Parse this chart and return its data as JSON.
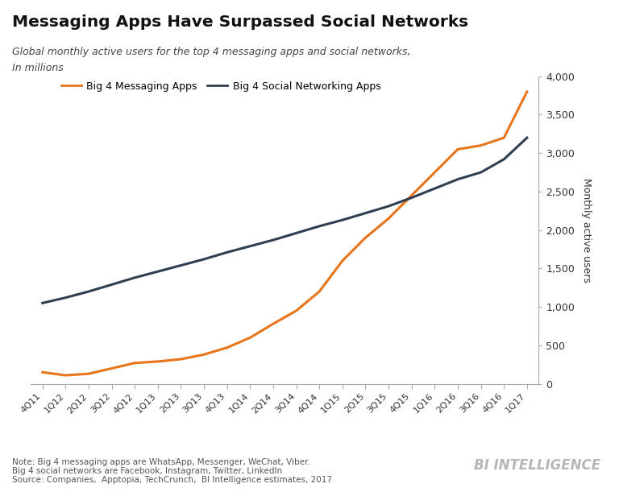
{
  "title": "Messaging Apps Have Surpassed Social Networks",
  "subtitle1": "Global monthly active users for the top 4 messaging apps and social networks,",
  "subtitle2": "In millions",
  "note1": "Note: Big 4 messaging apps are WhatsApp, Messenger, WeChat, Viber.",
  "note2": "Big 4 social networks are Facebook, Instagram, Twitter, LinkedIn",
  "note3": "Source: Companies,  Apptopia, TechCrunch,  BI Intelligence estimates, 2017",
  "watermark": "BI INTELLIGENCE",
  "x_labels": [
    "4Q11",
    "1Q12",
    "2Q12",
    "3Q12",
    "4Q12",
    "1Q13",
    "2Q13",
    "3Q13",
    "4Q13",
    "1Q14",
    "2Q14",
    "3Q14",
    "4Q14",
    "1Q15",
    "2Q15",
    "3Q15",
    "4Q15",
    "1Q16",
    "2Q16",
    "3Q16",
    "4Q16",
    "1Q17"
  ],
  "messaging_apps": [
    150,
    110,
    130,
    200,
    270,
    290,
    320,
    380,
    470,
    600,
    780,
    950,
    1200,
    1600,
    1900,
    2150,
    2450,
    2750,
    3050,
    3100,
    3200,
    3800
  ],
  "social_networks": [
    1050,
    1120,
    1200,
    1290,
    1380,
    1460,
    1540,
    1620,
    1710,
    1790,
    1870,
    1960,
    2050,
    2130,
    2220,
    2310,
    2420,
    2540,
    2660,
    2750,
    2920,
    3200
  ],
  "messaging_color": "#E8751A",
  "social_color": "#2E3F52",
  "background_color": "#FFFFFF",
  "ylabel": "Monthly active users",
  "ylim": [
    0,
    4000
  ],
  "yticks": [
    0,
    500,
    1000,
    1500,
    2000,
    2500,
    3000,
    3500,
    4000
  ],
  "legend_messaging": "Big 4 Messaging Apps",
  "legend_social": "Big 4 Social Networking Apps",
  "line_width": 2.2
}
